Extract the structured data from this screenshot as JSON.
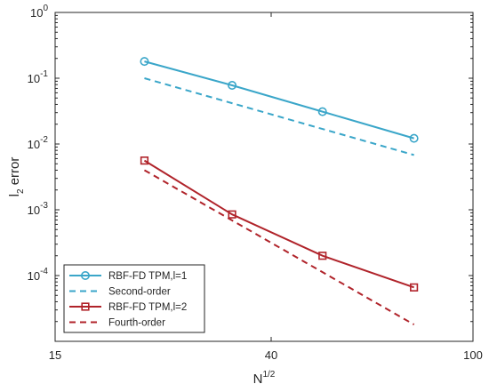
{
  "chart_data": {
    "type": "line",
    "title": "",
    "xlabel": "N^1/2",
    "xlabel_base": "N",
    "xlabel_sup": "1/2",
    "ylabel": "l_2 error",
    "ylabel_base": "l",
    "ylabel_sub": "2",
    "ylabel_rest": " error",
    "xscale": "log",
    "yscale": "log",
    "xlim": [
      15,
      100
    ],
    "ylim": [
      1e-05,
      1
    ],
    "xticks": [
      {
        "value": 15,
        "label": "15"
      },
      {
        "value": 40,
        "label": "40"
      },
      {
        "value": 100,
        "label": "100"
      }
    ],
    "yticks": [
      {
        "value": 1,
        "base": "10",
        "exp": "0"
      },
      {
        "value": 0.1,
        "base": "10",
        "exp": "-1"
      },
      {
        "value": 0.01,
        "base": "10",
        "exp": "-2"
      },
      {
        "value": 0.001,
        "base": "10",
        "exp": "-3"
      },
      {
        "value": 0.0001,
        "base": "10",
        "exp": "-4"
      }
    ],
    "grid": false,
    "box": true,
    "legend_position": "bottom-left",
    "series": [
      {
        "name": "RBF-FD TPM,l=1",
        "color": "#3aa6c9",
        "dash": "solid",
        "marker": "circle",
        "x": [
          22.5,
          33.5,
          50.5,
          76.5
        ],
        "y": [
          0.18,
          0.078,
          0.031,
          0.0122
        ]
      },
      {
        "name": "Second-order",
        "color": "#3aa6c9",
        "dash": "dashed",
        "marker": "none",
        "x": [
          22.5,
          76.5
        ],
        "y": [
          0.1,
          0.0068
        ]
      },
      {
        "name": "RBF-FD TPM,l=2",
        "color": "#b0232a",
        "dash": "solid",
        "marker": "square",
        "x": [
          22.5,
          33.5,
          50.5,
          76.5
        ],
        "y": [
          0.0056,
          0.00085,
          0.0002,
          6.6e-05
        ]
      },
      {
        "name": "Fourth-order",
        "color": "#b0232a",
        "dash": "dashed",
        "marker": "none",
        "x": [
          22.5,
          76.5
        ],
        "y": [
          0.004,
          1.8e-05
        ]
      }
    ]
  }
}
